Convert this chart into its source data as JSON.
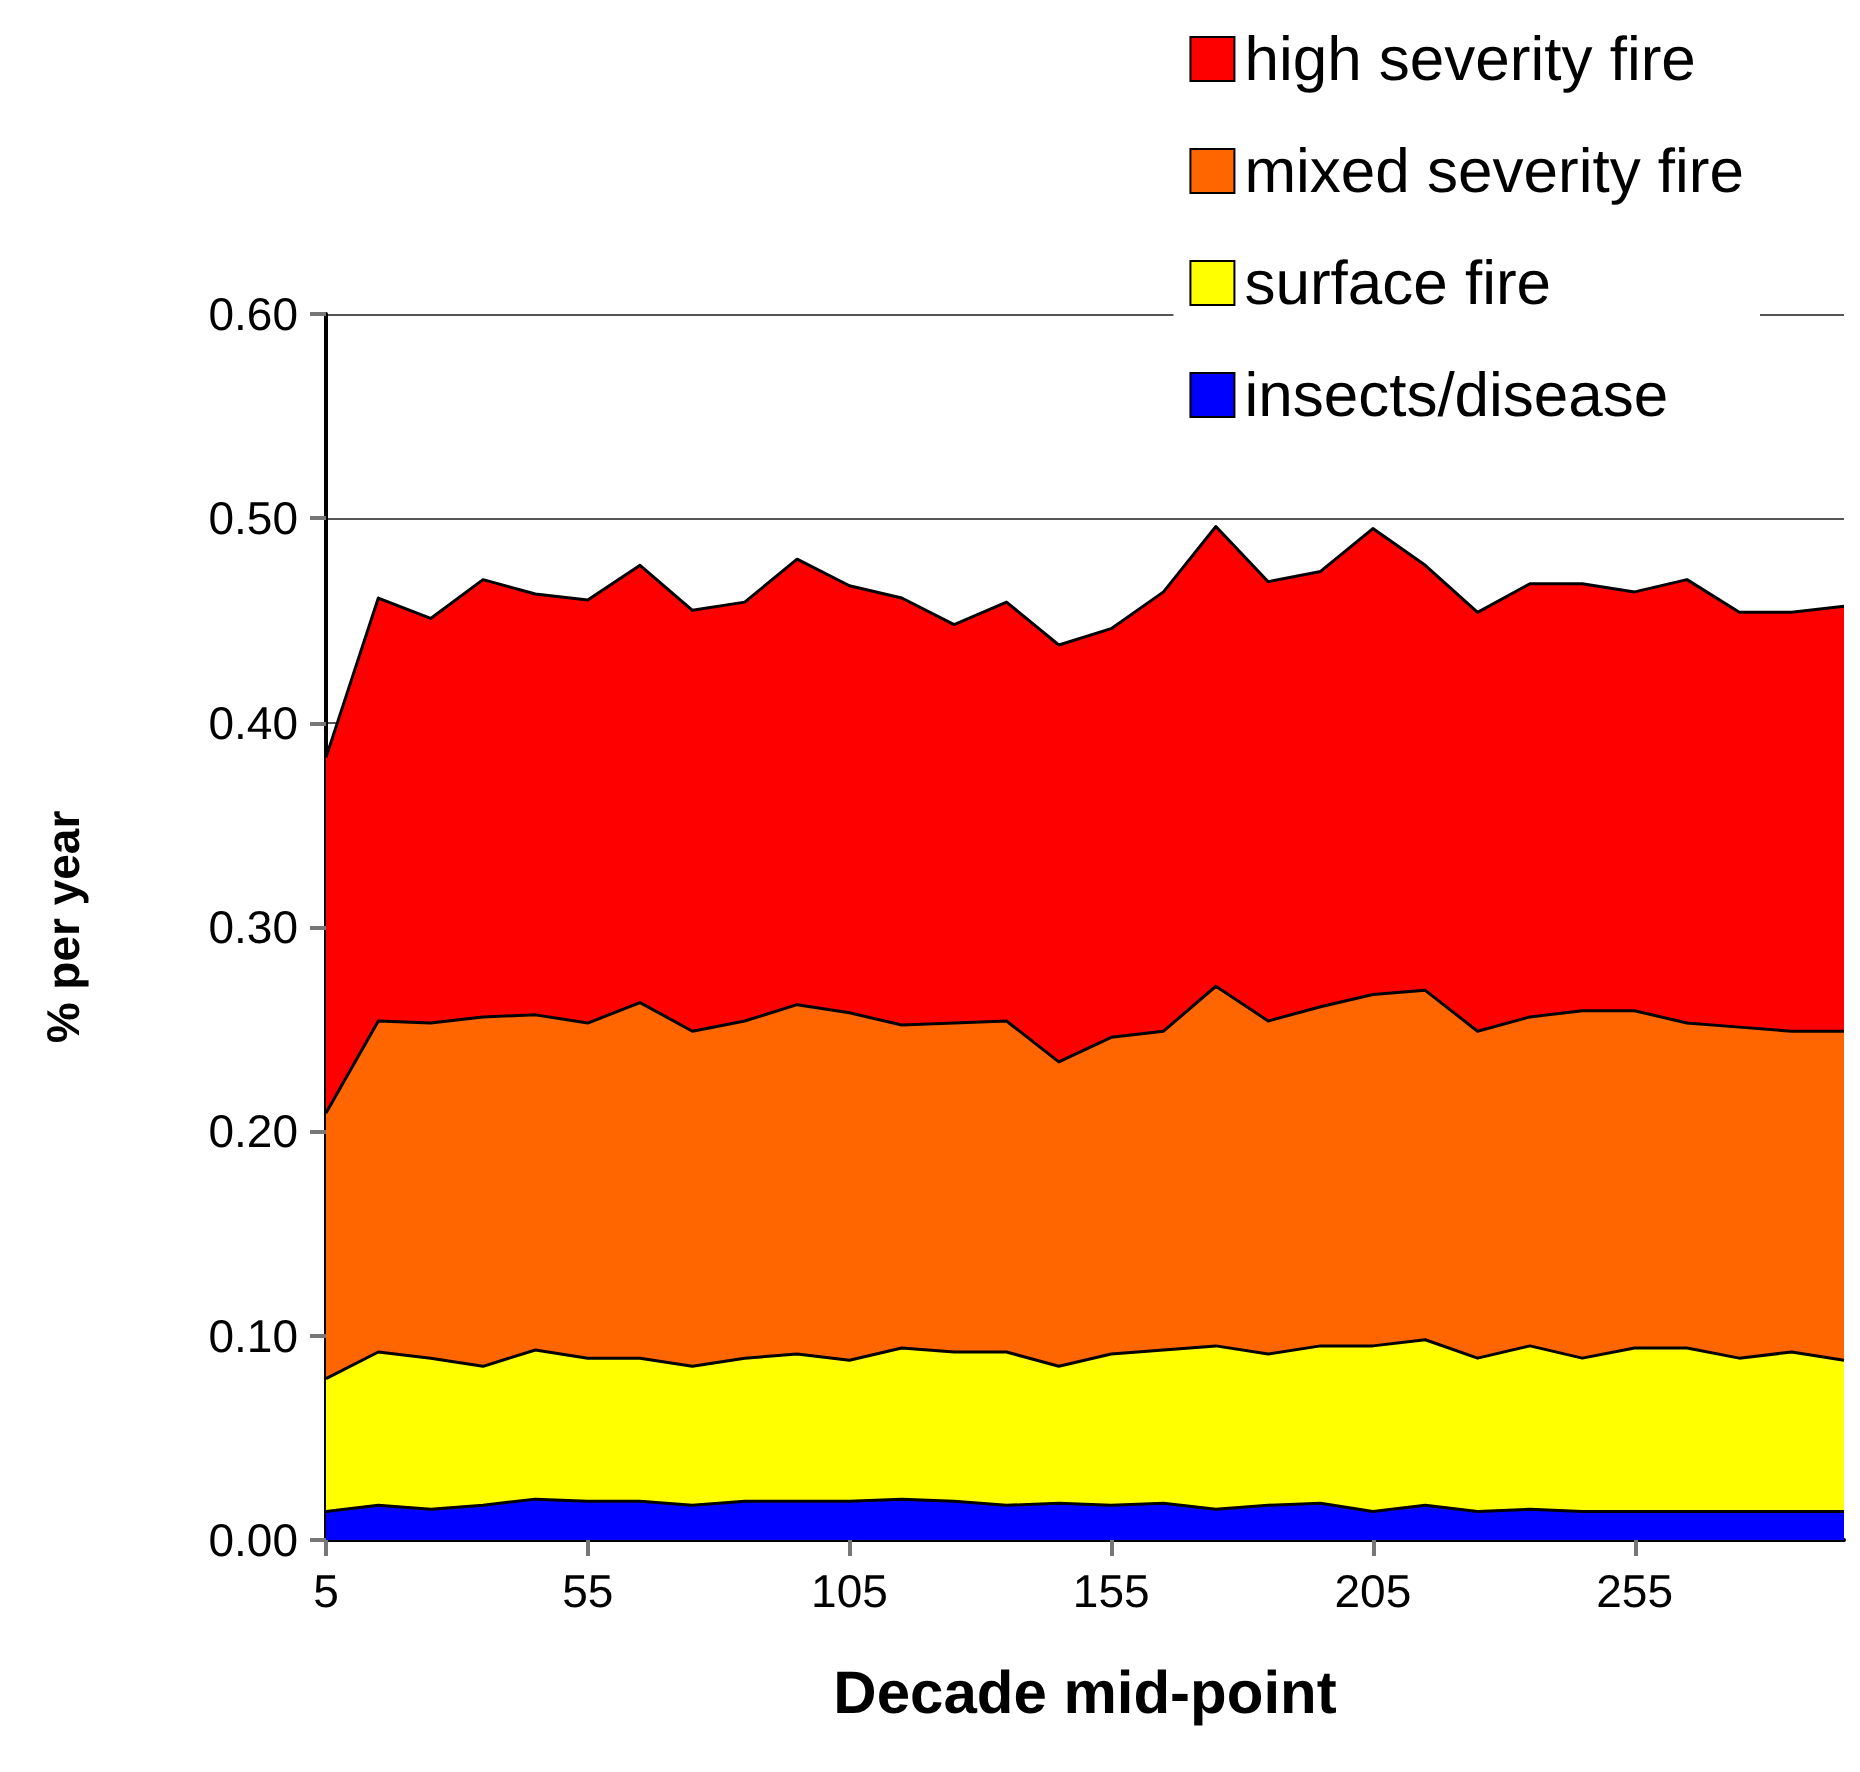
{
  "chart_data": {
    "type": "area",
    "stacked": true,
    "xlabel": "Decade mid-point",
    "ylabel": "% per year",
    "categories": [
      "5",
      null,
      null,
      null,
      null,
      "55",
      null,
      null,
      null,
      null,
      "105",
      null,
      null,
      null,
      null,
      "155",
      null,
      null,
      null,
      null,
      "205",
      null,
      null,
      null,
      null,
      "255",
      null,
      null,
      null,
      null
    ],
    "series": [
      {
        "name": "insects/disease",
        "color": "#0000ff",
        "values": [
          0.014,
          0.017,
          0.015,
          0.017,
          0.02,
          0.019,
          0.019,
          0.017,
          0.019,
          0.019,
          0.019,
          0.02,
          0.019,
          0.017,
          0.018,
          0.017,
          0.018,
          0.015,
          0.017,
          0.018,
          0.014,
          0.017,
          0.014,
          0.015,
          0.014,
          0.014,
          0.014,
          0.014,
          0.014,
          0.014
        ]
      },
      {
        "name": "surface fire",
        "color": "#ffff00",
        "values": [
          0.065,
          0.075,
          0.074,
          0.068,
          0.073,
          0.07,
          0.07,
          0.068,
          0.07,
          0.072,
          0.069,
          0.074,
          0.073,
          0.075,
          0.067,
          0.074,
          0.075,
          0.08,
          0.074,
          0.077,
          0.081,
          0.081,
          0.075,
          0.08,
          0.075,
          0.08,
          0.08,
          0.075,
          0.078,
          0.074
        ]
      },
      {
        "name": "mixed severity fire",
        "color": "#ff6600",
        "values": [
          0.13,
          0.162,
          0.164,
          0.171,
          0.164,
          0.164,
          0.174,
          0.164,
          0.165,
          0.171,
          0.17,
          0.158,
          0.161,
          0.162,
          0.149,
          0.155,
          0.156,
          0.176,
          0.163,
          0.166,
          0.172,
          0.171,
          0.16,
          0.161,
          0.17,
          0.165,
          0.159,
          0.162,
          0.157,
          0.161
        ]
      },
      {
        "name": "high severity fire",
        "color": "#ff0000",
        "values": [
          0.174,
          0.207,
          0.198,
          0.214,
          0.206,
          0.207,
          0.214,
          0.206,
          0.205,
          0.218,
          0.209,
          0.209,
          0.195,
          0.205,
          0.204,
          0.2,
          0.215,
          0.225,
          0.215,
          0.213,
          0.228,
          0.208,
          0.205,
          0.212,
          0.209,
          0.205,
          0.217,
          0.203,
          0.205,
          0.208
        ]
      }
    ],
    "ylim": [
      0,
      0.6
    ],
    "yticks": [
      {
        "value": 0,
        "label": "0.00"
      },
      {
        "value": 0.1,
        "label": "0.10"
      },
      {
        "value": 0.2,
        "label": "0.20"
      },
      {
        "value": 0.3,
        "label": "0.30"
      },
      {
        "value": 0.4,
        "label": "0.40"
      },
      {
        "value": 0.5,
        "label": "0.50"
      },
      {
        "value": 0.6,
        "label": "0.60"
      }
    ],
    "grid": "y",
    "legend": "top right"
  }
}
